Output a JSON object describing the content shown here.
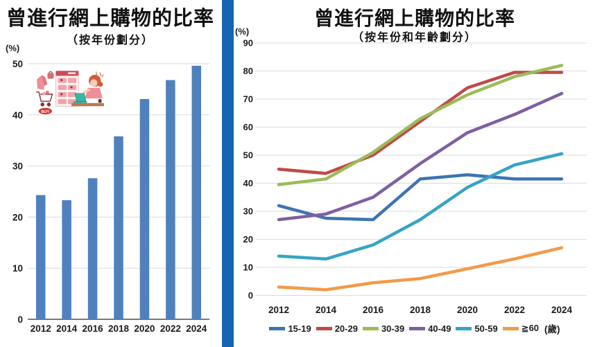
{
  "divider_color": "#1565B0",
  "text_color": "#1a1a1a",
  "grid_color": "#d9d9d9",
  "axis_color": "#4d4d4d",
  "illustration": {
    "buy_label": "BUY"
  },
  "chart_data": [
    {
      "type": "bar",
      "title": "曾進行網上購物的比率",
      "subtitle": "（按年份劃分）",
      "unit_label": "(%)",
      "categories": [
        "2012",
        "2014",
        "2016",
        "2018",
        "2020",
        "2022",
        "2024"
      ],
      "values": [
        24.3,
        23.3,
        27.6,
        35.8,
        43.1,
        46.8,
        49.6
      ],
      "ylim": [
        0,
        50
      ],
      "ytick_step": 10,
      "bar_color": "#4F81BD",
      "grid": true,
      "legend_position": "none"
    },
    {
      "type": "line",
      "title": "曾進行網上購物的比率",
      "subtitle": "（按年份和年齡劃分）",
      "unit_label": "(%)",
      "categories": [
        "2012",
        "2014",
        "2016",
        "2018",
        "2020",
        "2022",
        "2024"
      ],
      "ylim": [
        0,
        90
      ],
      "ytick_step": 10,
      "grid": true,
      "legend_position": "bottom",
      "legend_suffix": "(歲)",
      "series": [
        {
          "name": "15-19",
          "color": "#3B74B3",
          "values": [
            32,
            27.5,
            27,
            41.5,
            43,
            41.5,
            41.5
          ]
        },
        {
          "name": "20-29",
          "color": "#BE4B48",
          "values": [
            45,
            43.5,
            50,
            62,
            74,
            79.5,
            79.5
          ]
        },
        {
          "name": "30-39",
          "color": "#9BBB59",
          "values": [
            39.5,
            41.5,
            51,
            63,
            71.5,
            78,
            82
          ]
        },
        {
          "name": "40-49",
          "color": "#7D60A0",
          "values": [
            27,
            29,
            35,
            47,
            58,
            64.5,
            72
          ]
        },
        {
          "name": "50-59",
          "color": "#35A4C5",
          "values": [
            14,
            13,
            18,
            27,
            38.5,
            46.5,
            50.5
          ]
        },
        {
          "name": "≧60",
          "color": "#F39A49",
          "values": [
            3,
            2,
            4.5,
            6,
            9.5,
            13,
            17
          ]
        }
      ]
    }
  ]
}
